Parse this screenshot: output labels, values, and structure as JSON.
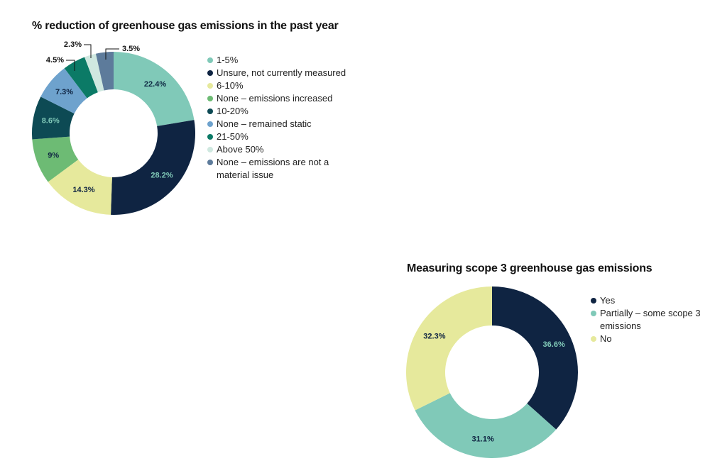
{
  "chart_data": [
    {
      "type": "pie",
      "title": "% reduction of greenhouse gas emissions in the past year",
      "donut": true,
      "legend_position": "right",
      "series": [
        {
          "label": "1-5%",
          "value": 22.4,
          "display": "22.4%",
          "color": "#80c9b8",
          "label_color": "#0f2a44"
        },
        {
          "label": "Unsure, not currently measured",
          "value": 28.2,
          "display": "28.2%",
          "color": "#0f2442",
          "label_color": "#80c9b8"
        },
        {
          "label": "6-10%",
          "value": 14.3,
          "display": "14.3%",
          "color": "#e6e99c",
          "label_color": "#0f2442"
        },
        {
          "label": "None – emissions increased",
          "value": 9,
          "display": "9%",
          "color": "#6dbb74",
          "label_color": "#0f2442"
        },
        {
          "label": "10-20%",
          "value": 8.6,
          "display": "8.6%",
          "color": "#0d4a54",
          "label_color": "#80c9b8"
        },
        {
          "label": "None – remained static",
          "value": 7.3,
          "display": "7.3%",
          "color": "#6ea2cd",
          "label_color": "#0f2442"
        },
        {
          "label": "21-50%",
          "value": 4.5,
          "display": "4.5%",
          "color": "#0b7a66",
          "label_color": "#111111"
        },
        {
          "label": "Above 50%",
          "value": 2.3,
          "display": "2.3%",
          "color": "#cfe8e0",
          "label_color": "#111111"
        },
        {
          "label": "None – emissions are not a material issue",
          "value": 3.5,
          "display": "3.5%",
          "color": "#5d7b9b",
          "label_color": "#111111"
        }
      ]
    },
    {
      "type": "pie",
      "title": "Measuring scope 3 greenhouse gas emissions",
      "donut": true,
      "legend_position": "right",
      "series": [
        {
          "label": "Yes",
          "value": 36.6,
          "display": "36.6%",
          "color": "#0f2442",
          "label_color": "#80c9b8"
        },
        {
          "label": "Partially – some scope 3 emissions",
          "value": 31.1,
          "display": "31.1%",
          "color": "#80c9b8",
          "label_color": "#0f2442"
        },
        {
          "label": "No",
          "value": 32.3,
          "display": "32.3%",
          "color": "#e6e99c",
          "label_color": "#0f2442"
        }
      ]
    }
  ]
}
